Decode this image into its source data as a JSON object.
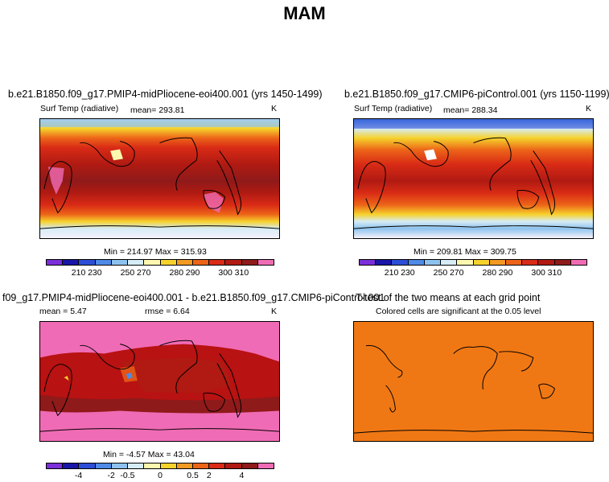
{
  "title": "MAM",
  "panels": {
    "top_left": {
      "title": "b.e21.B1850.f09_g17.PMIP4-midPliocene-eoi400.001 (yrs 1450-1499)",
      "variable": "Surf Temp (radiative)",
      "mean": "mean= 293.81",
      "units": "K",
      "minmax": "Min = 214.97 Max = 315.93"
    },
    "top_right": {
      "title": "b.e21.B1850.f09_g17.CMIP6-piControl.001 (yrs 1150-1199)",
      "variable": "Surf Temp (radiative)",
      "mean": "mean= 288.34",
      "units": "K",
      "minmax": "Min = 209.81 Max = 309.75"
    },
    "bottom_left": {
      "title": "f09_g17.PMIP4-midPliocene-eoi400.001 - b.e21.B1850.f09_g17.CMIP6-piControl.001",
      "mean": "mean =    5.47",
      "rmse": "rmse =    6.64",
      "units": "K",
      "minmax": "Min = -4.57 Max = 43.04"
    },
    "bottom_right": {
      "title": "T-test of the two means at each grid point",
      "subtitle": "Colored cells are significant at the 0.05 level"
    }
  },
  "colorbars": {
    "absolute": {
      "colors": [
        "#7b2fd9",
        "#1a16a8",
        "#2c4ed6",
        "#4e8ae6",
        "#8dc2ee",
        "#d6ecf6",
        "#fdf7b0",
        "#f6d22c",
        "#f29a22",
        "#ec6418",
        "#d92b16",
        "#b01a12",
        "#8f1a1a",
        "#f06bb5"
      ],
      "labels": [
        "210",
        "230",
        "250",
        "270",
        "280",
        "290",
        "300",
        "310"
      ]
    },
    "difference": {
      "colors": [
        "#7b2fd9",
        "#1a16a8",
        "#2c4ed6",
        "#4e8ae6",
        "#8dc2ee",
        "#d6ecf6",
        "#fdf7b0",
        "#f6d22c",
        "#f29a22",
        "#ec6418",
        "#d92b16",
        "#b01a12",
        "#8f1a1a",
        "#f06bb5"
      ],
      "labels": [
        "-4",
        "-2",
        "-0.5",
        "0",
        "0.5",
        "2",
        "4"
      ]
    }
  },
  "colors": {
    "ttest_fill": "#f07814",
    "diff_background": "#f06bb5",
    "diff_high": "#b81212"
  }
}
